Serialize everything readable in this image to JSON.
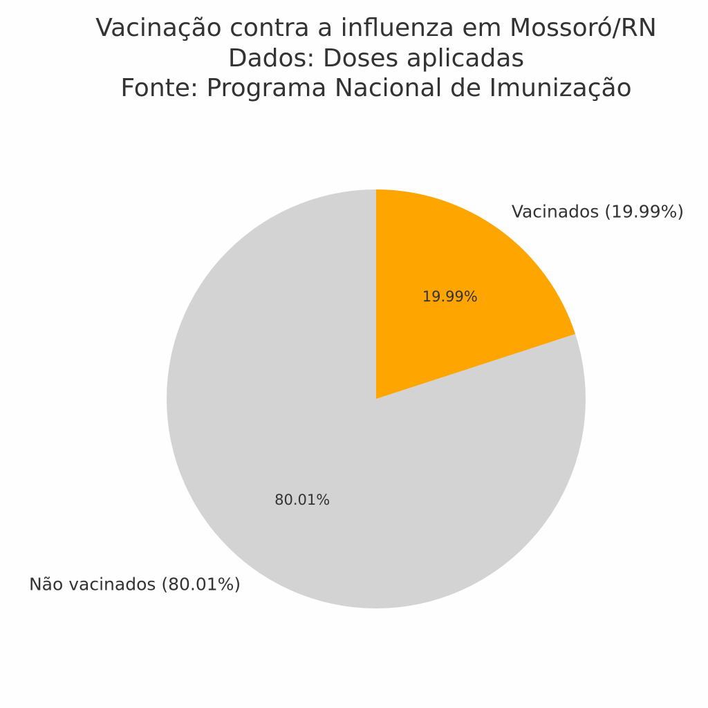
{
  "chart_data": {
    "type": "pie",
    "title": [
      "Vacinação contra a influenza em Mossoró/RN",
      "Dados: Doses aplicadas",
      "Fonte: Programa Nacional de Imunização"
    ],
    "categories": [
      "Vacinados (19.99%)",
      "Não vacinados (80.01%)"
    ],
    "values": [
      19.99,
      80.01
    ],
    "value_labels": [
      "19.99%",
      "80.01%"
    ],
    "colors": [
      "#ffa500",
      "#d3d3d3"
    ]
  }
}
